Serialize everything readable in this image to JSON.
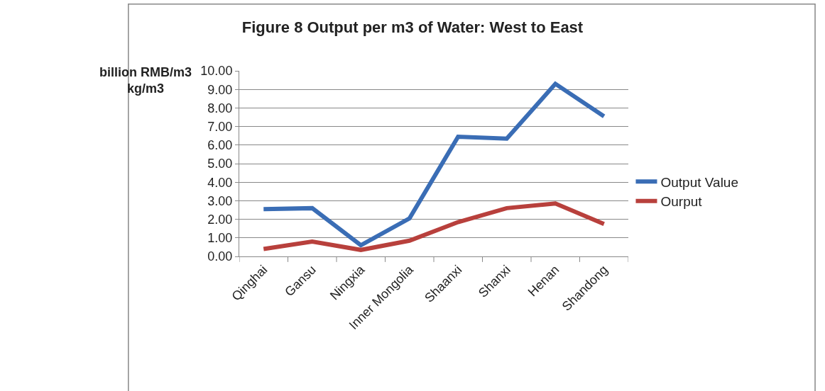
{
  "chart_data": {
    "type": "line",
    "title": "Figure 8 Output per m3 of Water: West to East",
    "ylabel": "billion RMB/m3\nkg/m3",
    "categories": [
      "Qinghai",
      "Gansu",
      "Ningxia",
      "Inner Mongolia",
      "Shaanxi",
      "Shanxi",
      "Henan",
      "Shandong"
    ],
    "series": [
      {
        "name": "Output Value",
        "color": "#3a6db5",
        "values": [
          2.55,
          2.6,
          0.6,
          2.05,
          6.45,
          6.35,
          9.3,
          7.55
        ]
      },
      {
        "name": "Ourput",
        "color": "#b8403c",
        "values": [
          0.4,
          0.8,
          0.35,
          0.85,
          1.85,
          2.6,
          2.85,
          1.75
        ]
      }
    ],
    "ylim": [
      0,
      10
    ],
    "yticks": [
      {
        "value": 0,
        "label": "0.00"
      },
      {
        "value": 1,
        "label": "1.00"
      },
      {
        "value": 2,
        "label": "2.00"
      },
      {
        "value": 3,
        "label": "3.00"
      },
      {
        "value": 4,
        "label": "4.00"
      },
      {
        "value": 5,
        "label": "5.00"
      },
      {
        "value": 6,
        "label": "6.00"
      },
      {
        "value": 7,
        "label": "7.00"
      },
      {
        "value": 8,
        "label": "8.00"
      },
      {
        "value": 9,
        "label": "9.00"
      },
      {
        "value": 10,
        "label": "10.00"
      }
    ],
    "grid": "y",
    "legend": "right",
    "marker": "none",
    "line_style": "solid"
  }
}
